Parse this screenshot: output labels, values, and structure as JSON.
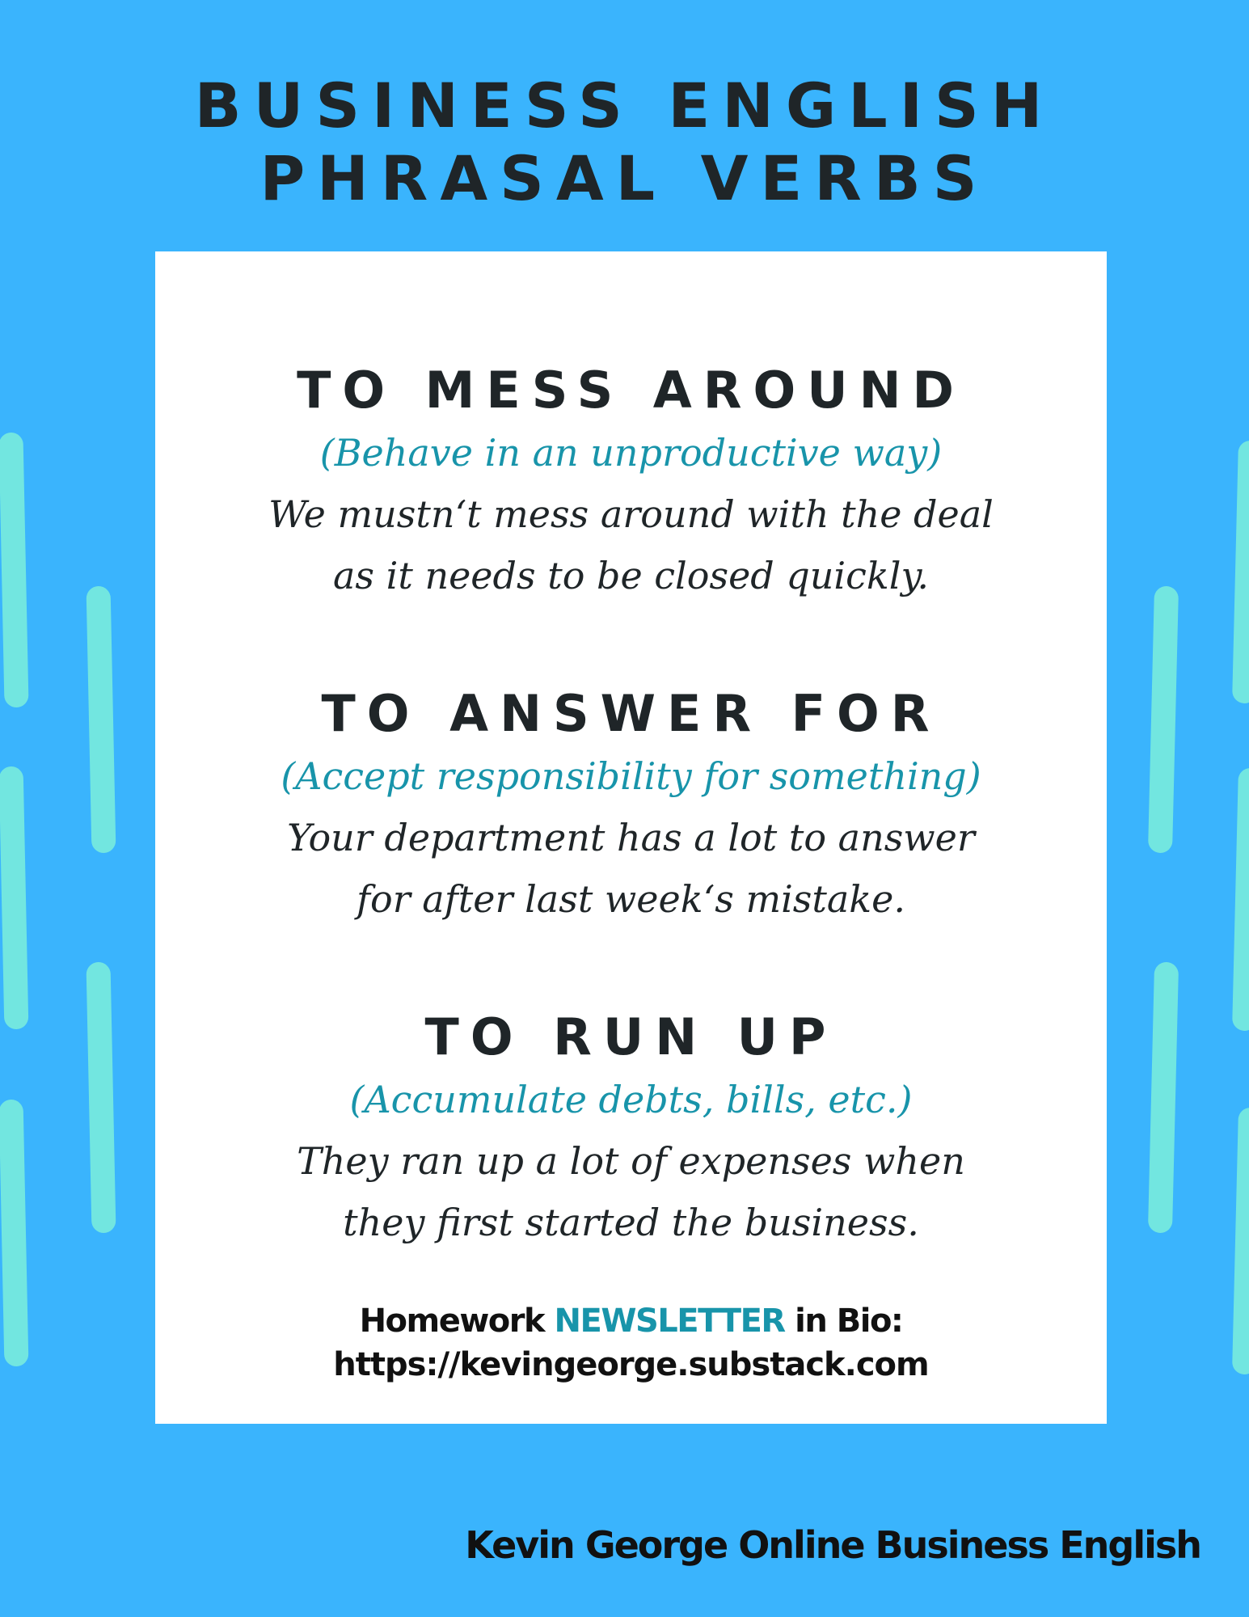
{
  "title": {
    "line1": "BUSINESS ENGLISH",
    "line2": "PHRASAL VERBS"
  },
  "entries": [
    {
      "verb": "TO MESS AROUND",
      "meaning": "(Behave in an unproductive way)",
      "example_line1": "We mustn‘t mess around with the deal",
      "example_line2": "as it needs to be closed quickly."
    },
    {
      "verb": "TO ANSWER FOR",
      "meaning": "(Accept responsibility for something)",
      "example_line1": "Your department has a lot to answer",
      "example_line2": "for after last week‘s mistake."
    },
    {
      "verb": "TO RUN UP",
      "meaning": "(Accumulate debts, bills, etc.)",
      "example_line1": "They ran up a lot of expenses when",
      "example_line2": "they first started the business."
    }
  ],
  "newsletter": {
    "prefix": "Homework",
    "highlight": "NEWSLETTER",
    "suffix": "in Bio:",
    "url": "https://kevingeorge.substack.com"
  },
  "footer": "Kevin George Online Business English",
  "colors": {
    "background": "#3ab4fd",
    "accent_teal": "#1894aa",
    "dash": "#72e6e0",
    "text_dark": "#1f2528"
  }
}
